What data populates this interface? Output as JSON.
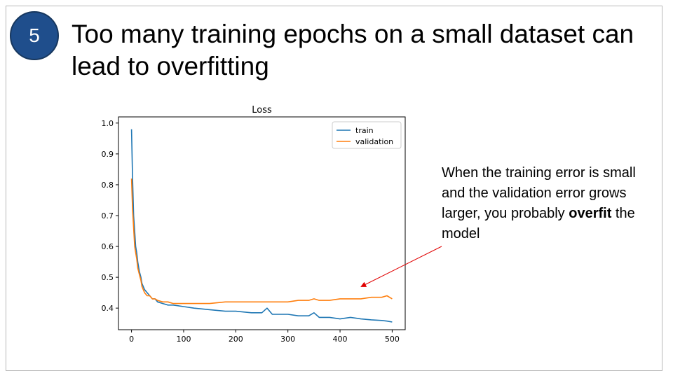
{
  "slide": {
    "number": "5",
    "title": "Too many training epochs on a small dataset can lead to overfitting",
    "note_before": "When the training error is small and the validation error grows larger, you probably ",
    "note_bold": "overfit",
    "note_after": " the model"
  },
  "colors": {
    "badge": "#1f4e8c",
    "train": "#1f77b4",
    "validation": "#ff7f0e",
    "arrow": "#e00000"
  },
  "chart_data": {
    "type": "line",
    "title": "Loss",
    "xlabel": "",
    "ylabel": "",
    "xlim": [
      -25,
      525
    ],
    "ylim": [
      0.33,
      1.02
    ],
    "xticks": [
      0,
      100,
      200,
      300,
      400,
      500
    ],
    "yticks": [
      0.4,
      0.5,
      0.6,
      0.7,
      0.8,
      0.9,
      1.0
    ],
    "xtick_labels": [
      "0",
      "100",
      "200",
      "300",
      "400",
      "500"
    ],
    "ytick_labels": [
      "0.4",
      "0.5",
      "0.6",
      "0.7",
      "0.8",
      "0.9",
      "1.0"
    ],
    "legend_position": "top-right",
    "grid": false,
    "series": [
      {
        "name": "train",
        "x": [
          0,
          2,
          4,
          6,
          8,
          10,
          12,
          15,
          18,
          20,
          25,
          30,
          35,
          40,
          45,
          50,
          60,
          70,
          80,
          100,
          120,
          150,
          180,
          200,
          230,
          250,
          260,
          270,
          280,
          300,
          320,
          340,
          350,
          360,
          380,
          400,
          420,
          440,
          460,
          480,
          490,
          500
        ],
        "y": [
          0.98,
          0.82,
          0.7,
          0.65,
          0.6,
          0.58,
          0.55,
          0.52,
          0.5,
          0.48,
          0.46,
          0.45,
          0.44,
          0.43,
          0.43,
          0.42,
          0.415,
          0.41,
          0.41,
          0.405,
          0.4,
          0.395,
          0.39,
          0.39,
          0.385,
          0.385,
          0.4,
          0.38,
          0.38,
          0.38,
          0.375,
          0.375,
          0.385,
          0.37,
          0.37,
          0.365,
          0.37,
          0.365,
          0.362,
          0.36,
          0.358,
          0.355
        ]
      },
      {
        "name": "validation",
        "x": [
          0,
          2,
          4,
          6,
          8,
          10,
          12,
          15,
          18,
          20,
          25,
          30,
          35,
          40,
          45,
          50,
          60,
          70,
          80,
          100,
          120,
          150,
          180,
          200,
          230,
          250,
          270,
          300,
          320,
          340,
          350,
          360,
          380,
          400,
          420,
          440,
          460,
          480,
          490,
          500
        ],
        "y": [
          0.82,
          0.72,
          0.66,
          0.6,
          0.58,
          0.56,
          0.53,
          0.51,
          0.49,
          0.47,
          0.45,
          0.44,
          0.44,
          0.43,
          0.43,
          0.425,
          0.42,
          0.42,
          0.415,
          0.415,
          0.415,
          0.415,
          0.42,
          0.42,
          0.42,
          0.42,
          0.42,
          0.42,
          0.425,
          0.425,
          0.43,
          0.425,
          0.425,
          0.43,
          0.43,
          0.43,
          0.435,
          0.435,
          0.44,
          0.43
        ]
      }
    ]
  }
}
